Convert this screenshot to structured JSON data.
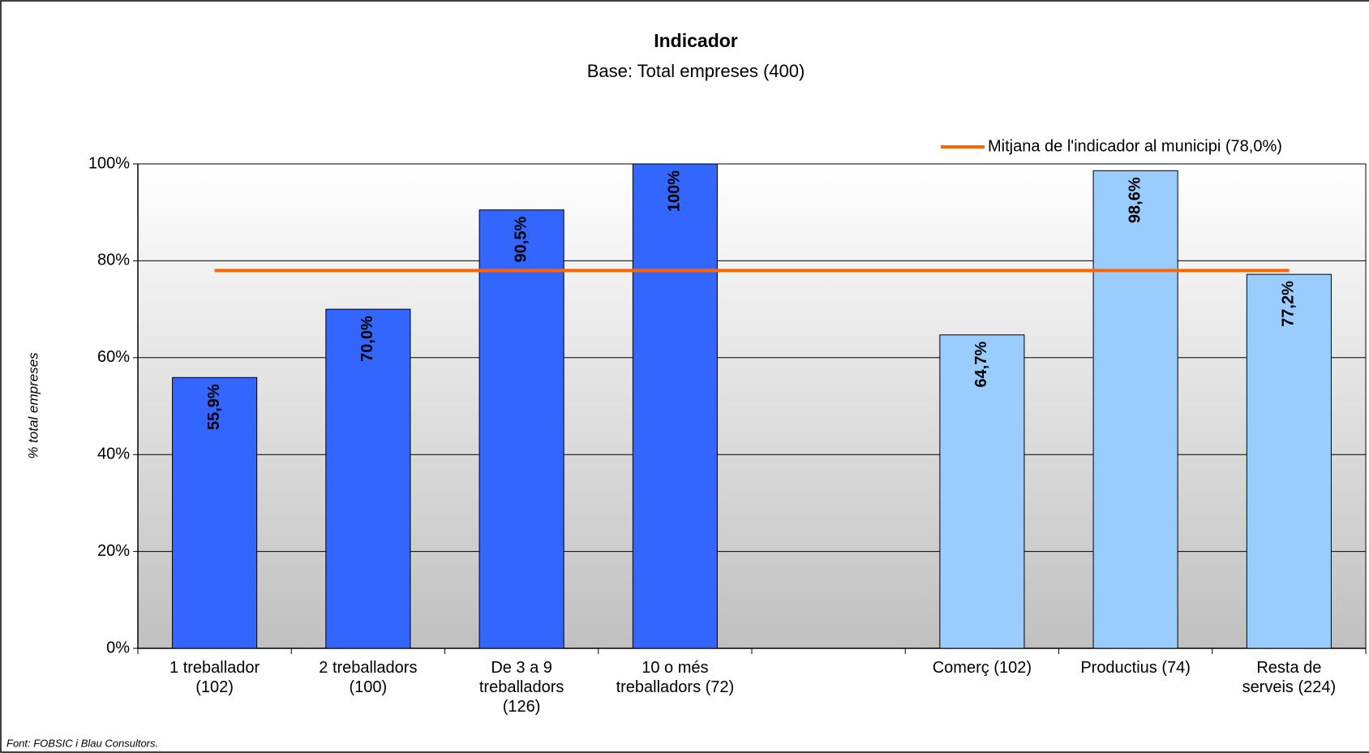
{
  "chart_data": {
    "type": "bar",
    "title": "Indicador",
    "subtitle": "Base: Total empreses (400)",
    "y_label": "% total empreses",
    "footer": "Font: FOBSIC i Blau Consultors.",
    "categories": [
      "1 treballador\n(102)",
      "2 treballadors\n(100)",
      "De 3 a 9\ntreballadors\n(126)",
      "10 o més\ntreballadors (72)",
      null,
      "Comerç (102)",
      "Productius (74)",
      "Resta de\nserveis (224)"
    ],
    "values": [
      55.9,
      70.0,
      90.5,
      100,
      null,
      64.7,
      98.6,
      77.2
    ],
    "value_labels": [
      "55,9%",
      "70,0%",
      "90,5%",
      "100%",
      null,
      "64,7%",
      "98,6%",
      "77,2%"
    ],
    "colors": [
      "#3366ff",
      "#3366ff",
      "#3366ff",
      "#3366ff",
      null,
      "#99ccff",
      "#99ccff",
      "#99ccff"
    ],
    "reference_line": {
      "name": "Mitjana de l'indicador al municipi (78,0%)",
      "value": 78.0,
      "color": "#ff6600"
    },
    "ylim": [
      0,
      100
    ],
    "yticks": [
      {
        "value": 0,
        "label": "0%"
      },
      {
        "value": 20,
        "label": "20%"
      },
      {
        "value": 40,
        "label": "40%"
      },
      {
        "value": 60,
        "label": "60%"
      },
      {
        "value": 80,
        "label": "80%"
      },
      {
        "value": 100,
        "label": "100%"
      }
    ],
    "grid": true,
    "legend": "top-right"
  }
}
